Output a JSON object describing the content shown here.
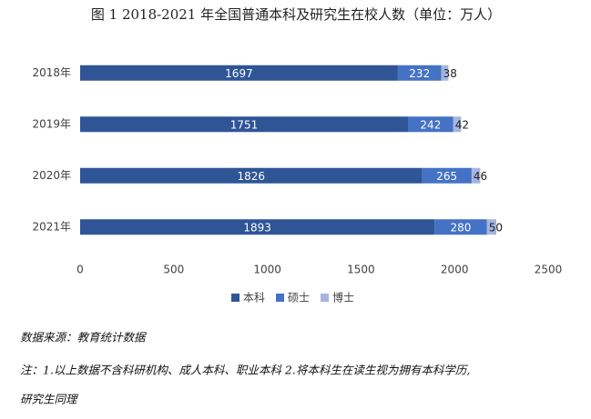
{
  "chart_data": {
    "type": "bar",
    "horizontal": true,
    "stacked": true,
    "title": "图 1 2018-2021 年全国普通本科及研究生在校人数（单位：万人）",
    "categories": [
      "2018年",
      "2019年",
      "2020年",
      "2021年"
    ],
    "series": [
      {
        "name": "本科",
        "color": "#2f5597",
        "label_color": "#ffffff",
        "values": [
          1697,
          1751,
          1826,
          1893
        ]
      },
      {
        "name": "硕士",
        "color": "#4472c4",
        "label_color": "#ffffff",
        "values": [
          232,
          242,
          265,
          280
        ]
      },
      {
        "name": "博士",
        "color": "#a5b5df",
        "label_color": "#222222",
        "values": [
          38,
          42,
          46,
          50
        ]
      }
    ],
    "xlim": [
      0,
      2500
    ],
    "xticks": [
      0,
      500,
      1000,
      1500,
      2000,
      2500
    ],
    "grid": false,
    "legend": "bottom"
  },
  "notes": [
    "数据来源：教育统计数据",
    "注：1.以上数据不含科研机构、成人本科、职业本科 2.将本科生在读生视为拥有本科学历,",
    "研究生同理"
  ]
}
